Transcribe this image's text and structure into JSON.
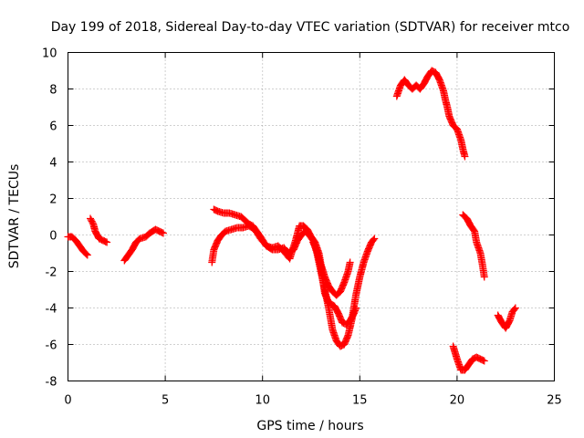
{
  "chart_data": {
    "type": "scatter",
    "title": "Day 199 of 2018, Sidereal Day-to-day VTEC variation (SDTVAR) for receiver mtco",
    "xlabel": "GPS time / hours",
    "ylabel": "SDTVAR / TECUs",
    "xlim": [
      0,
      25
    ],
    "ylim": [
      -8,
      10
    ],
    "xticks": [
      0,
      5,
      10,
      15,
      20,
      25
    ],
    "yticks": [
      -8,
      -6,
      -4,
      -2,
      0,
      2,
      4,
      6,
      8,
      10
    ],
    "grid": true,
    "marker": "+",
    "color": "#ff0000",
    "series": [
      {
        "name": "mtco",
        "segments": [
          [
            [
              0.0,
              -0.1
            ],
            [
              0.2,
              -0.1
            ],
            [
              0.4,
              -0.3
            ],
            [
              0.6,
              -0.6
            ],
            [
              0.8,
              -0.9
            ],
            [
              1.0,
              -1.1
            ]
          ],
          [
            [
              1.15,
              0.9
            ],
            [
              1.3,
              0.6
            ],
            [
              1.4,
              0.2
            ],
            [
              1.6,
              -0.2
            ],
            [
              1.8,
              -0.3
            ],
            [
              2.0,
              -0.4
            ]
          ],
          [
            [
              2.9,
              -1.4
            ],
            [
              3.1,
              -1.1
            ],
            [
              3.3,
              -0.8
            ],
            [
              3.5,
              -0.4
            ],
            [
              3.7,
              -0.2
            ],
            [
              4.0,
              -0.1
            ],
            [
              4.2,
              0.1
            ],
            [
              4.5,
              0.3
            ],
            [
              4.7,
              0.2
            ],
            [
              4.9,
              0.1
            ]
          ],
          [
            [
              7.4,
              -1.5
            ],
            [
              7.5,
              -0.8
            ],
            [
              7.7,
              -0.3
            ],
            [
              7.9,
              0.0
            ],
            [
              8.1,
              0.2
            ],
            [
              8.4,
              0.3
            ],
            [
              8.7,
              0.4
            ],
            [
              9.0,
              0.4
            ],
            [
              9.3,
              0.5
            ],
            [
              9.6,
              0.3
            ],
            [
              9.9,
              -0.2
            ],
            [
              10.2,
              -0.6
            ],
            [
              10.5,
              -0.8
            ],
            [
              10.8,
              -0.8
            ],
            [
              11.1,
              -0.7
            ],
            [
              11.3,
              -1.0
            ],
            [
              11.6,
              -0.8
            ],
            [
              11.8,
              -0.3
            ],
            [
              12.0,
              0.0
            ],
            [
              12.2,
              0.2
            ],
            [
              12.4,
              0.0
            ],
            [
              12.6,
              -0.3
            ],
            [
              12.8,
              -1.0
            ],
            [
              13.0,
              -2.0
            ],
            [
              13.2,
              -3.0
            ],
            [
              13.4,
              -4.0
            ],
            [
              13.6,
              -5.2
            ],
            [
              13.8,
              -5.8
            ],
            [
              14.0,
              -6.1
            ],
            [
              14.2,
              -6.0
            ],
            [
              14.4,
              -5.5
            ],
            [
              14.6,
              -4.6
            ],
            [
              14.8,
              -3.3
            ],
            [
              15.0,
              -2.3
            ],
            [
              15.2,
              -1.5
            ],
            [
              15.4,
              -0.9
            ],
            [
              15.6,
              -0.4
            ],
            [
              15.75,
              -0.2
            ]
          ],
          [
            [
              7.5,
              1.4
            ],
            [
              7.7,
              1.3
            ],
            [
              8.0,
              1.2
            ],
            [
              8.3,
              1.2
            ],
            [
              8.6,
              1.1
            ],
            [
              8.9,
              1.0
            ],
            [
              9.1,
              0.8
            ],
            [
              9.3,
              0.6
            ],
            [
              9.5,
              0.5
            ],
            [
              9.7,
              0.2
            ],
            [
              9.9,
              -0.1
            ],
            [
              10.2,
              -0.6
            ],
            [
              10.5,
              -0.7
            ],
            [
              10.8,
              -0.6
            ],
            [
              11.1,
              -0.9
            ],
            [
              11.4,
              -1.3
            ],
            [
              11.7,
              -0.3
            ],
            [
              11.9,
              0.5
            ],
            [
              12.1,
              0.5
            ],
            [
              12.3,
              0.3
            ],
            [
              12.5,
              -0.1
            ],
            [
              12.7,
              -0.4
            ],
            [
              12.9,
              -1.0
            ],
            [
              13.0,
              -1.6
            ],
            [
              13.2,
              -2.3
            ],
            [
              13.4,
              -2.8
            ],
            [
              13.6,
              -3.1
            ],
            [
              13.8,
              -3.3
            ],
            [
              14.0,
              -3.1
            ],
            [
              14.2,
              -2.6
            ],
            [
              14.4,
              -2.0
            ],
            [
              14.5,
              -1.5
            ]
          ],
          [
            [
              12.6,
              -0.4
            ],
            [
              12.8,
              -0.9
            ],
            [
              13.0,
              -1.7
            ],
            [
              13.1,
              -2.5
            ],
            [
              13.2,
              -3.2
            ],
            [
              13.4,
              -3.7
            ],
            [
              13.7,
              -3.9
            ],
            [
              13.9,
              -4.3
            ],
            [
              14.1,
              -4.8
            ],
            [
              14.3,
              -4.9
            ],
            [
              14.5,
              -4.7
            ],
            [
              14.7,
              -4.3
            ],
            [
              14.8,
              -4.0
            ]
          ],
          [
            [
              16.9,
              7.6
            ],
            [
              17.1,
              8.2
            ],
            [
              17.3,
              8.5
            ],
            [
              17.5,
              8.2
            ],
            [
              17.7,
              8.0
            ],
            [
              17.9,
              8.2
            ],
            [
              18.1,
              8.0
            ],
            [
              18.3,
              8.3
            ],
            [
              18.5,
              8.7
            ],
            [
              18.7,
              9.0
            ],
            [
              18.9,
              8.9
            ],
            [
              19.1,
              8.5
            ],
            [
              19.3,
              7.9
            ],
            [
              19.4,
              7.4
            ],
            [
              19.5,
              7.0
            ],
            [
              19.6,
              6.5
            ],
            [
              19.8,
              6.0
            ],
            [
              20.0,
              5.8
            ],
            [
              20.2,
              5.2
            ],
            [
              20.3,
              4.7
            ],
            [
              20.4,
              4.3
            ]
          ],
          [
            [
              20.3,
              1.1
            ],
            [
              20.5,
              0.9
            ],
            [
              20.7,
              0.5
            ],
            [
              20.9,
              0.2
            ],
            [
              21.0,
              -0.4
            ],
            [
              21.2,
              -1.0
            ],
            [
              21.3,
              -1.6
            ],
            [
              21.4,
              -2.3
            ]
          ],
          [
            [
              19.8,
              -6.1
            ],
            [
              20.0,
              -6.8
            ],
            [
              20.2,
              -7.4
            ],
            [
              20.4,
              -7.4
            ],
            [
              20.6,
              -7.1
            ],
            [
              20.8,
              -6.8
            ],
            [
              21.0,
              -6.7
            ],
            [
              21.2,
              -6.8
            ],
            [
              21.4,
              -6.9
            ]
          ],
          [
            [
              22.1,
              -4.4
            ],
            [
              22.3,
              -4.8
            ],
            [
              22.5,
              -5.1
            ],
            [
              22.7,
              -4.7
            ],
            [
              22.85,
              -4.2
            ],
            [
              23.0,
              -4.0
            ]
          ]
        ]
      }
    ]
  }
}
